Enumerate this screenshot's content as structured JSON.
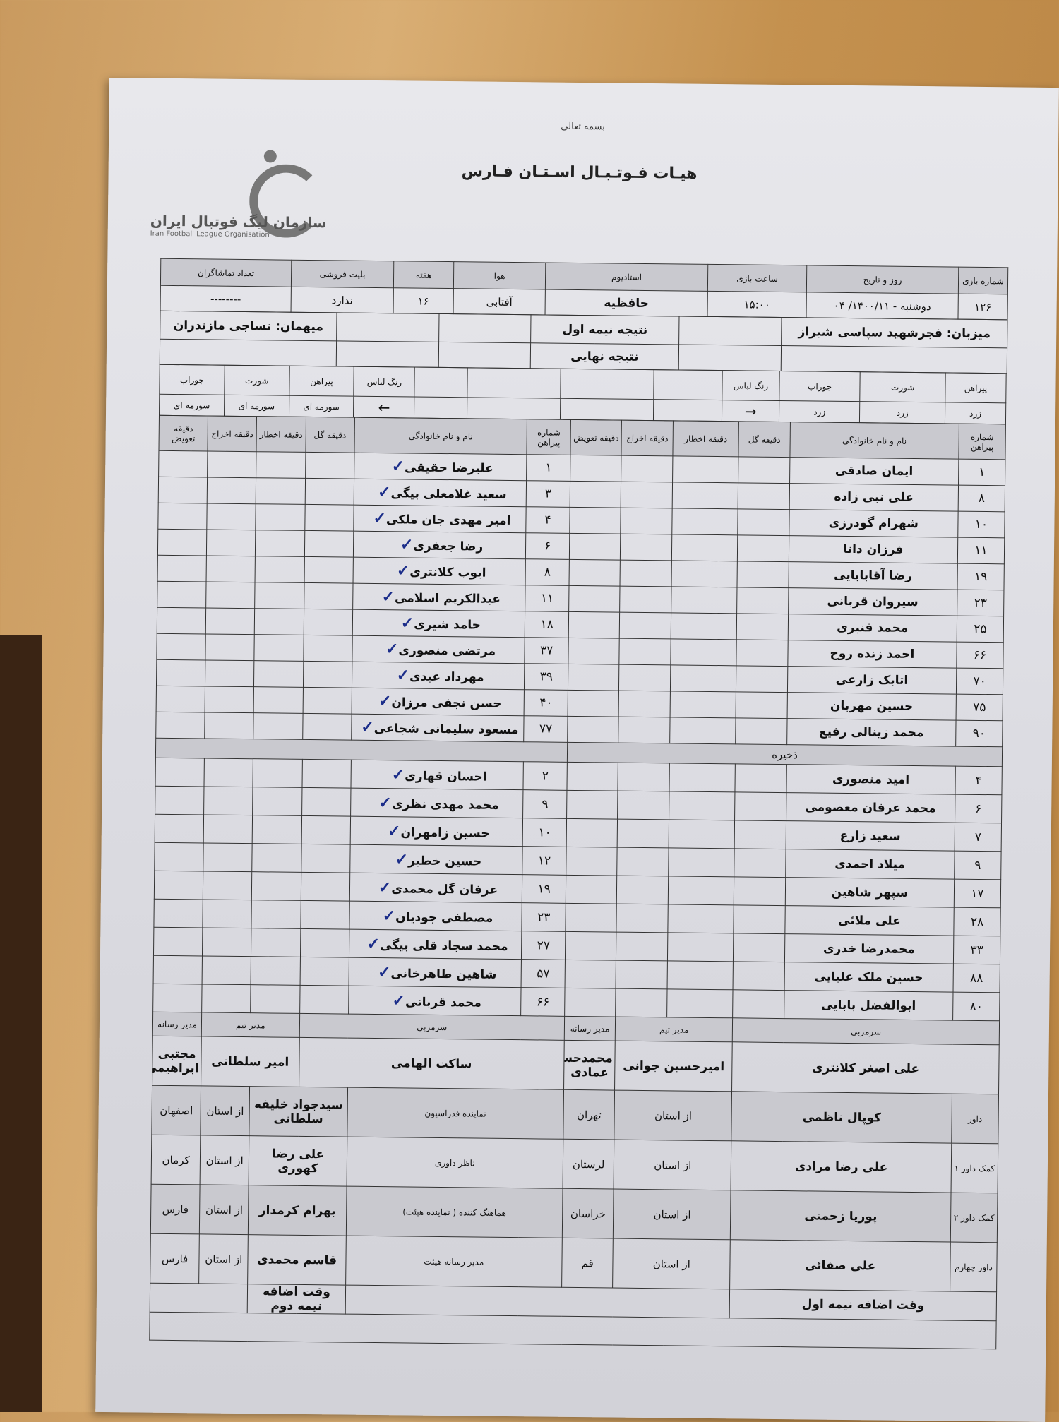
{
  "header": {
    "bismillah": "بسمه تعالی",
    "title": "هیـات فـوتـبـال اسـتـان فـارس",
    "logo_fa": "سازمان لیگ فوتبال ایران",
    "logo_en": "Iran Football League Organisation"
  },
  "match_info": {
    "labels": [
      "شماره بازی",
      "روز و تاریخ",
      "ساعت بازی",
      "استادیوم",
      "هوا",
      "هفته",
      "بلیت فروشی",
      "تعداد تماشاگران"
    ],
    "values": [
      "۱۲۶",
      "دوشنبه - ۱۴۰۰/۱۱/ ۰۴",
      "۱۵:۰۰",
      "حافظیه",
      "آفتابی",
      "۱۶",
      "ندارد",
      "--------"
    ]
  },
  "teams": {
    "host": "میزبان: فجرشهید سپاسی شیراز",
    "guest": "میهمان: نساجی مازندران",
    "first_half": "نتیجه نیمه اول",
    "final": "نتیجه نهایی"
  },
  "kit": {
    "labels": [
      "پیراهن",
      "شورت",
      "جوراب",
      "رنگ لباس"
    ],
    "host": [
      "زرد",
      "زرد",
      "زرد"
    ],
    "guest": [
      "سورمه ای",
      "سورمه ای",
      "سورمه ای"
    ],
    "host_arrow": "→",
    "guest_arrow": "←"
  },
  "columns": [
    "شماره پیراهن",
    "نام و نام خانوادگی",
    "دقیقه گل",
    "دقیقه اخطار",
    "دقیقه اخراج",
    "دقیقه تعویض"
  ],
  "check_mark": "✓",
  "host_starters": [
    [
      "۱",
      "ایمان صادقی"
    ],
    [
      "۸",
      "علی نبی زاده"
    ],
    [
      "۱۰",
      "شهرام گودرزی"
    ],
    [
      "۱۱",
      "فرزان دانا"
    ],
    [
      "۱۹",
      "رضا آقابابایی"
    ],
    [
      "۲۳",
      "سیروان قربانی"
    ],
    [
      "۲۵",
      "محمد قنبری"
    ],
    [
      "۶۶",
      "احمد زنده روح"
    ],
    [
      "۷۰",
      "اتابک زارعی"
    ],
    [
      "۷۵",
      "حسین مهربان"
    ],
    [
      "۹۰",
      "محمد زینالی رفیع"
    ]
  ],
  "guest_starters": [
    [
      "۱",
      "علیرضا حقیقی"
    ],
    [
      "۳",
      "سعید غلامعلی بیگی"
    ],
    [
      "۴",
      "امیر مهدی جان ملکی"
    ],
    [
      "۶",
      "رضا جعفری"
    ],
    [
      "۸",
      "ایوب کلانتری"
    ],
    [
      "۱۱",
      "عبدالکریم اسلامی"
    ],
    [
      "۱۸",
      "حامد شیری"
    ],
    [
      "۳۷",
      "مرتضی منصوری"
    ],
    [
      "۳۹",
      "مهرداد عبدی"
    ],
    [
      "۴۰",
      "حسن نجفی مرزان"
    ],
    [
      "۷۷",
      "مسعود سلیمانی شجاعی"
    ]
  ],
  "reserves_label": "ذخیره",
  "host_subs": [
    [
      "۴",
      "امید منصوری"
    ],
    [
      "۶",
      "محمد عرفان معصومی"
    ],
    [
      "۷",
      "سعید زارع"
    ],
    [
      "۹",
      "میلاد احمدی"
    ],
    [
      "۱۷",
      "سپهر شاهین"
    ],
    [
      "۲۸",
      "علی ملائی"
    ],
    [
      "۳۳",
      "محمدرضا خدری"
    ],
    [
      "۸۸",
      "حسین ملک علیایی"
    ],
    [
      "۸۰",
      "ابوالفضل بابایی"
    ]
  ],
  "guest_subs": [
    [
      "۲",
      "احسان قهاری"
    ],
    [
      "۹",
      "محمد مهدی نظری"
    ],
    [
      "۱۰",
      "حسین زامهران"
    ],
    [
      "۱۲",
      "حسین خطیر"
    ],
    [
      "۱۹",
      "عرفان گل محمدی"
    ],
    [
      "۲۳",
      "مصطفی جودیان"
    ],
    [
      "۲۷",
      "محمد سجاد قلی بیگی"
    ],
    [
      "۵۷",
      "شاهین طاهرخانی"
    ],
    [
      "۶۶",
      "محمد قربانی"
    ]
  ],
  "staff": {
    "labels": [
      "سرمربی",
      "مدیر تیم",
      "مدیر رسانه"
    ],
    "host": [
      "علی اصغر کلانتری",
      "امیرحسین جوانی",
      "محمدحسین عمادی"
    ],
    "guest": [
      "ساکت الهامی",
      "امیر سلطانی",
      "مجتبی ابراهیمی"
    ]
  },
  "from_province": "از استان",
  "referees": [
    {
      "role": "داور",
      "name": "کوپال ناظمی",
      "province": "تهران",
      "orole": "نماینده فدراسیون",
      "oname": "سیدجواد خلیفه سلطانی",
      "oprovince": "اصفهان"
    },
    {
      "role": "کمک داور ۱",
      "name": "علی رضا مرادی",
      "province": "لرستان",
      "orole": "ناظر داوری",
      "oname": "علی رضا کهوری",
      "oprovince": "کرمان"
    },
    {
      "role": "کمک داور ۲",
      "name": "پوریا زحمتی",
      "province": "خراسان",
      "orole": "هماهنگ کننده ( نماینده هیئت)",
      "oname": "بهرام کرمدار",
      "oprovince": "فارس"
    },
    {
      "role": "داور چهارم",
      "name": "علی صفائی",
      "province": "قم",
      "orole": "مدیر رسانه هیئت",
      "oname": "قاسم محمدی",
      "oprovince": "فارس"
    }
  ],
  "extra_time": {
    "first": "وقت اضافه نیمه اول",
    "second": "وقت اضافه نیمه دوم"
  }
}
